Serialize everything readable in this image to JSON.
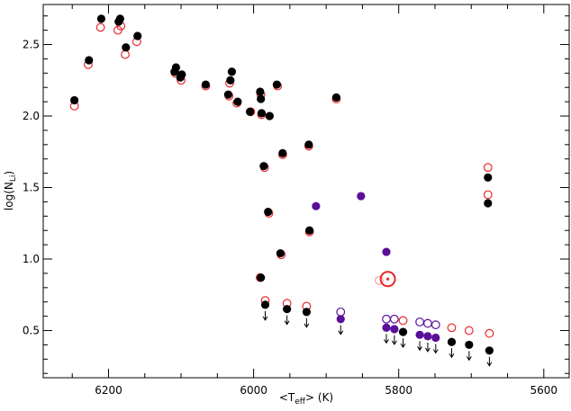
{
  "chart_data": {
    "type": "scatter",
    "x_label": {
      "open": "<T",
      "sub": "eff",
      "close": "> (K)"
    },
    "y_label": {
      "open": "log(N",
      "sub": "Li",
      "close": ")"
    },
    "xlim": [
      6290,
      5565
    ],
    "ylim": [
      0.17,
      2.78
    ],
    "xticks": [
      6200,
      6000,
      5800,
      5600
    ],
    "xminorticks": [
      6250,
      6150,
      6100,
      6050,
      5950,
      5900,
      5850,
      5750,
      5700,
      5650
    ],
    "yticks": [
      {
        "value": 0.5,
        "label": "0.5"
      },
      {
        "value": 1,
        "label": "1.0"
      },
      {
        "value": 1.5,
        "label": "1.5"
      },
      {
        "value": 2,
        "label": "2.0"
      },
      {
        "value": 2.5,
        "label": "2.5"
      }
    ],
    "yminorticks": [
      0.2,
      0.3,
      0.4,
      0.6,
      0.7,
      0.8,
      0.9,
      1.1,
      1.2,
      1.3,
      1.4,
      1.6,
      1.7,
      1.8,
      1.9,
      2.1,
      2.2,
      2.3,
      2.4,
      2.6,
      2.7
    ],
    "series": [
      {
        "color": "#e8262a",
        "marker": "open",
        "upper_limit": false,
        "x": [
          6247,
          6228,
          6211,
          6187,
          6183,
          6177,
          6161,
          6108,
          6100,
          6066,
          6034,
          6033,
          6023,
          6004,
          5990,
          5989,
          5967,
          5985,
          5960,
          5924,
          5979,
          5962,
          5923,
          5886,
          5991,
          5677,
          5677
        ],
        "values": [
          2.07,
          2.36,
          2.62,
          2.6,
          2.63,
          2.43,
          2.52,
          2.3,
          2.25,
          2.21,
          2.14,
          2.23,
          2.09,
          2.03,
          2.15,
          2.01,
          2.21,
          1.64,
          1.73,
          1.79,
          1.32,
          1.03,
          1.19,
          2.12,
          0.87,
          1.64,
          1.45
        ]
      },
      {
        "color": "#e8262a",
        "marker": "open",
        "upper_limit": false,
        "x": [
          5984,
          5954,
          5927,
          5794,
          5727,
          5703,
          5675
        ],
        "values": [
          0.71,
          0.69,
          0.67,
          0.57,
          0.52,
          0.5,
          0.48
        ]
      },
      {
        "color": "#000000",
        "marker": "filled",
        "upper_limit": false,
        "x": [
          6247,
          6227,
          6210,
          6186,
          6184,
          6176,
          6160,
          6107,
          6109,
          6099,
          6101,
          6066,
          6035,
          6032,
          6030,
          6022,
          6005,
          5991,
          5990,
          5989,
          5978,
          5968,
          5986,
          5960,
          5924,
          5980,
          5963,
          5923,
          5886,
          5990,
          5677,
          5677
        ],
        "values": [
          2.11,
          2.39,
          2.68,
          2.66,
          2.68,
          2.48,
          2.56,
          2.34,
          2.31,
          2.29,
          2.27,
          2.22,
          2.15,
          2.25,
          2.31,
          2.1,
          2.03,
          2.17,
          2.12,
          2.02,
          2,
          2.22,
          1.65,
          1.74,
          1.8,
          1.33,
          1.04,
          1.2,
          2.13,
          0.87,
          1.57,
          1.39
        ]
      },
      {
        "color": "#000000",
        "marker": "filled",
        "upper_limit": true,
        "x": [
          5984,
          5954,
          5927,
          5794,
          5727,
          5703,
          5675
        ],
        "values": [
          0.68,
          0.65,
          0.63,
          0.49,
          0.42,
          0.4,
          0.36
        ]
      },
      {
        "color": "#5a0f9a",
        "marker": "filled",
        "upper_limit": false,
        "x": [
          5914,
          5852,
          5817
        ],
        "values": [
          1.37,
          1.44,
          1.05
        ]
      },
      {
        "color": "#5a0f9a",
        "marker": "open",
        "upper_limit": false,
        "x": [
          5880,
          5817,
          5806,
          5771,
          5760,
          5749
        ],
        "values": [
          0.63,
          0.58,
          0.58,
          0.56,
          0.55,
          0.54
        ]
      },
      {
        "color": "#5a0f9a",
        "marker": "filled",
        "upper_limit": true,
        "x": [
          5880,
          5817,
          5806,
          5771,
          5760,
          5749
        ],
        "values": [
          0.58,
          0.52,
          0.51,
          0.47,
          0.46,
          0.45
        ]
      },
      {
        "color": "#f4a0a0",
        "marker": "open",
        "upper_limit": false,
        "x": [
          5827
        ],
        "values": [
          0.85
        ]
      },
      {
        "color": "#e8262a",
        "marker": "sun",
        "upper_limit": false,
        "x": [
          5815
        ],
        "values": [
          0.86
        ]
      }
    ]
  }
}
